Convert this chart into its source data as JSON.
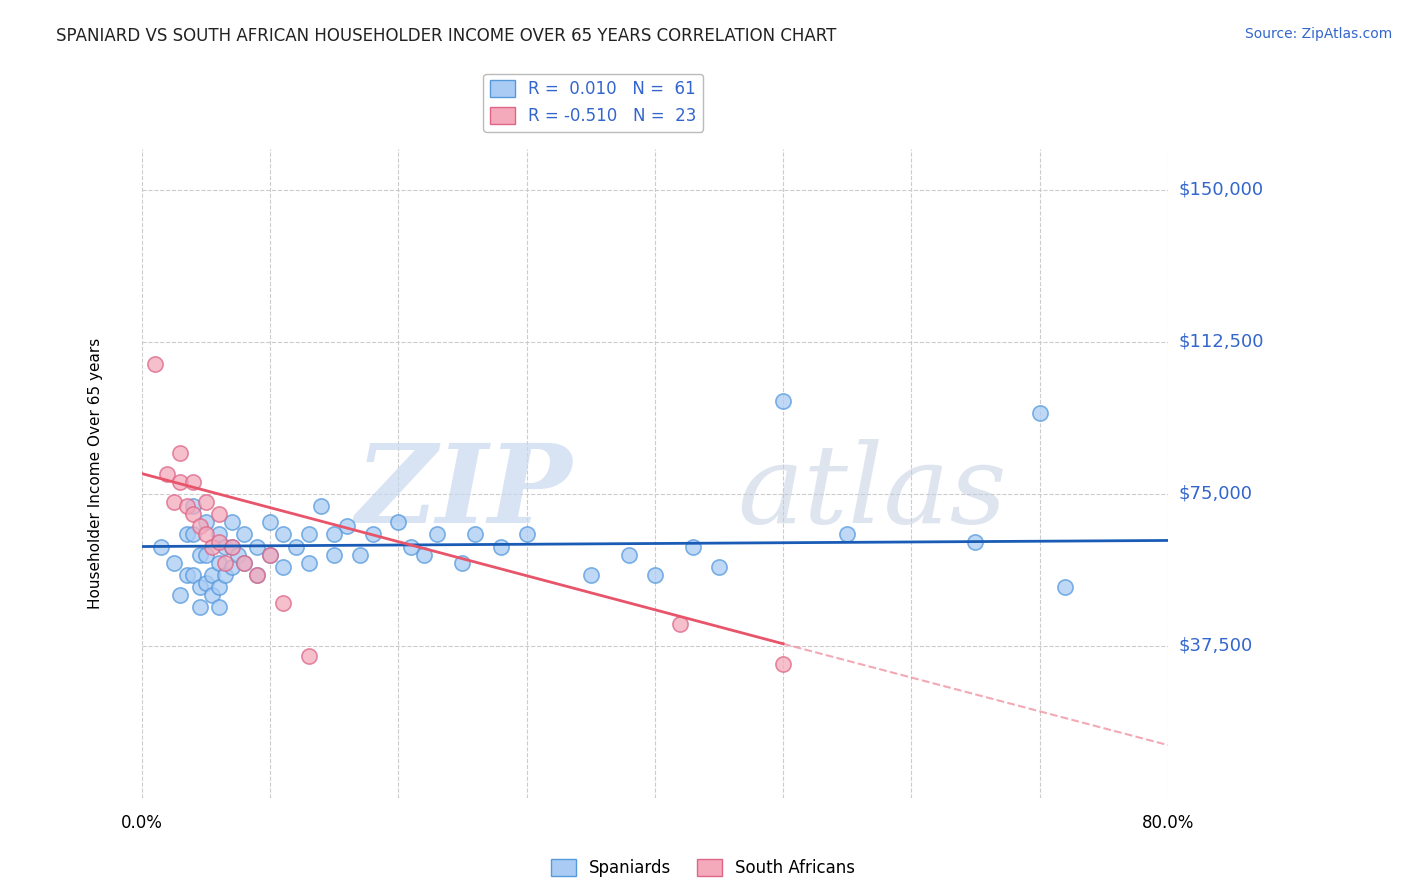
{
  "title": "SPANIARD VS SOUTH AFRICAN HOUSEHOLDER INCOME OVER 65 YEARS CORRELATION CHART",
  "source": "Source: ZipAtlas.com",
  "ylabel": "Householder Income Over 65 years",
  "xlim": [
    0.0,
    0.8
  ],
  "ylim": [
    0,
    160000
  ],
  "yticks": [
    0,
    37500,
    75000,
    112500,
    150000
  ],
  "ytick_labels": [
    "",
    "$37,500",
    "$75,000",
    "$112,500",
    "$150,000"
  ],
  "xticks": [
    0.0,
    0.1,
    0.2,
    0.3,
    0.4,
    0.5,
    0.6,
    0.7,
    0.8
  ],
  "xtick_labels": [
    "0.0%",
    "",
    "",
    "",
    "",
    "",
    "",
    "",
    "80.0%"
  ],
  "grid_color": "#cccccc",
  "background_color": "#ffffff",
  "spaniard_color": "#aaccf4",
  "sa_color": "#f4aabb",
  "spaniard_R": 0.01,
  "spaniard_N": 61,
  "sa_R": -0.51,
  "sa_N": 23,
  "spaniard_line_color": "#1a5cb5",
  "sa_line_color": "#e8546a",
  "watermark_zip": "ZIP",
  "watermark_atlas": "atlas",
  "spaniard_dots": [
    [
      0.015,
      62000
    ],
    [
      0.025,
      58000
    ],
    [
      0.03,
      50000
    ],
    [
      0.035,
      65000
    ],
    [
      0.035,
      55000
    ],
    [
      0.04,
      72000
    ],
    [
      0.04,
      65000
    ],
    [
      0.04,
      55000
    ],
    [
      0.045,
      60000
    ],
    [
      0.045,
      52000
    ],
    [
      0.045,
      47000
    ],
    [
      0.05,
      68000
    ],
    [
      0.05,
      60000
    ],
    [
      0.05,
      53000
    ],
    [
      0.055,
      55000
    ],
    [
      0.055,
      50000
    ],
    [
      0.06,
      65000
    ],
    [
      0.06,
      58000
    ],
    [
      0.06,
      52000
    ],
    [
      0.06,
      47000
    ],
    [
      0.065,
      62000
    ],
    [
      0.065,
      55000
    ],
    [
      0.07,
      68000
    ],
    [
      0.07,
      62000
    ],
    [
      0.07,
      57000
    ],
    [
      0.075,
      60000
    ],
    [
      0.08,
      65000
    ],
    [
      0.08,
      58000
    ],
    [
      0.09,
      62000
    ],
    [
      0.09,
      55000
    ],
    [
      0.1,
      68000
    ],
    [
      0.1,
      60000
    ],
    [
      0.11,
      65000
    ],
    [
      0.11,
      57000
    ],
    [
      0.12,
      62000
    ],
    [
      0.13,
      65000
    ],
    [
      0.13,
      58000
    ],
    [
      0.14,
      72000
    ],
    [
      0.15,
      65000
    ],
    [
      0.15,
      60000
    ],
    [
      0.16,
      67000
    ],
    [
      0.17,
      60000
    ],
    [
      0.18,
      65000
    ],
    [
      0.2,
      68000
    ],
    [
      0.21,
      62000
    ],
    [
      0.22,
      60000
    ],
    [
      0.23,
      65000
    ],
    [
      0.25,
      58000
    ],
    [
      0.26,
      65000
    ],
    [
      0.28,
      62000
    ],
    [
      0.3,
      65000
    ],
    [
      0.35,
      55000
    ],
    [
      0.38,
      60000
    ],
    [
      0.4,
      55000
    ],
    [
      0.43,
      62000
    ],
    [
      0.45,
      57000
    ],
    [
      0.5,
      98000
    ],
    [
      0.55,
      65000
    ],
    [
      0.65,
      63000
    ],
    [
      0.7,
      95000
    ],
    [
      0.72,
      52000
    ]
  ],
  "sa_dots": [
    [
      0.01,
      107000
    ],
    [
      0.02,
      80000
    ],
    [
      0.025,
      73000
    ],
    [
      0.03,
      85000
    ],
    [
      0.03,
      78000
    ],
    [
      0.035,
      72000
    ],
    [
      0.04,
      78000
    ],
    [
      0.04,
      70000
    ],
    [
      0.045,
      67000
    ],
    [
      0.05,
      73000
    ],
    [
      0.05,
      65000
    ],
    [
      0.055,
      62000
    ],
    [
      0.06,
      70000
    ],
    [
      0.06,
      63000
    ],
    [
      0.065,
      58000
    ],
    [
      0.07,
      62000
    ],
    [
      0.08,
      58000
    ],
    [
      0.09,
      55000
    ],
    [
      0.1,
      60000
    ],
    [
      0.11,
      48000
    ],
    [
      0.13,
      35000
    ],
    [
      0.42,
      43000
    ],
    [
      0.5,
      33000
    ]
  ],
  "spaniard_line": {
    "x0": 0.0,
    "y0": 62000,
    "x1": 0.8,
    "y1": 63500
  },
  "sa_line_solid": {
    "x0": 0.0,
    "y0": 80000,
    "x1": 0.5,
    "y1": 38000
  },
  "sa_line_dashed": {
    "x0": 0.5,
    "y0": 38000,
    "x1": 0.8,
    "y1": 13000
  }
}
